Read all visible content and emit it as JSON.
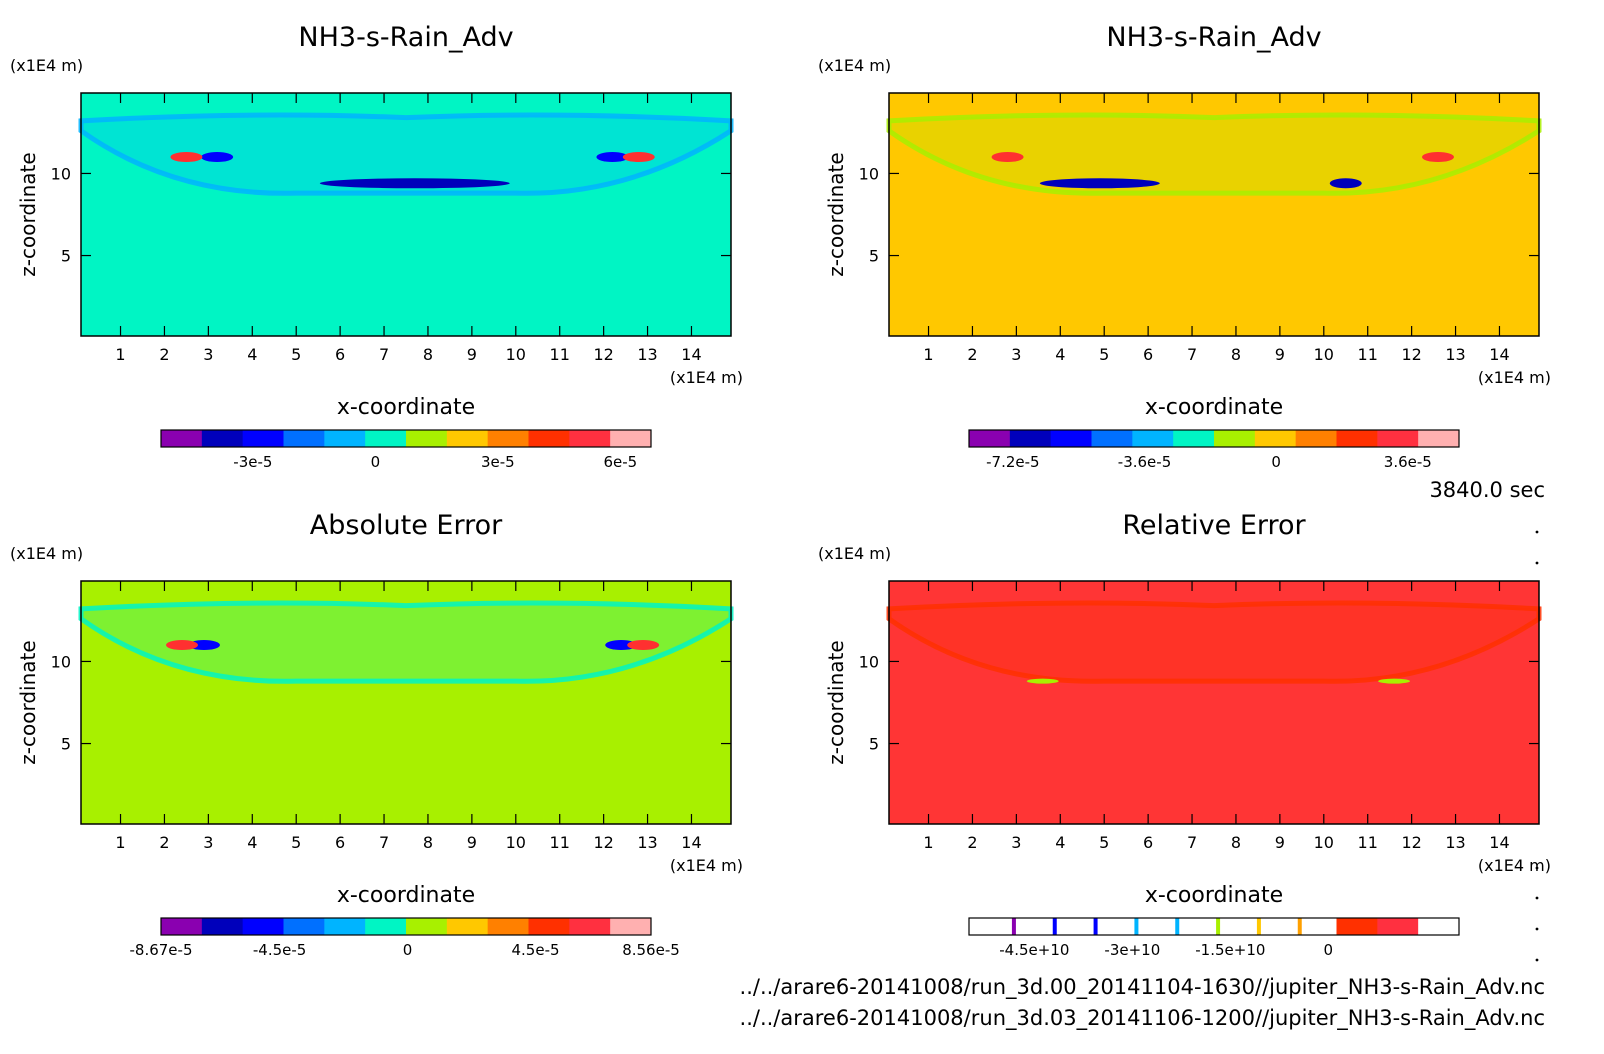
{
  "timestamp": "3840.0 sec",
  "files": [
    "../../arare6-20141008/run_3d.00_20141104-1630//jupiter_NH3-s-Rain_Adv.nc",
    "../../arare6-20141008/run_3d.03_20141106-1200//jupiter_NH3-s-Rain_Adv.nc"
  ],
  "chart_data": [
    {
      "type": "heatmap",
      "title": "NH3-s-Rain_Adv",
      "xlabel": "x-coordinate",
      "ylabel": "z-coordinate",
      "xunit": "(x1E4 m)",
      "yunit": "(x1E4 m)",
      "xticks": [
        1,
        2,
        3,
        4,
        5,
        6,
        7,
        8,
        9,
        10,
        11,
        12,
        13,
        14
      ],
      "yticks": [
        5,
        10
      ],
      "xlim": [
        0.1,
        14.9
      ],
      "ylim": [
        0.1,
        14.9
      ],
      "background_color": "#00f5c4",
      "features": [
        {
          "x": 7.7,
          "z": 9.4,
          "value": -3.8e-05,
          "color": "#0000bb"
        },
        {
          "x": 3.2,
          "z": 11.0,
          "value": -3e-05,
          "color": "#0000ff"
        },
        {
          "x": 12.2,
          "z": 11.0,
          "value": -3e-05,
          "color": "#0000ff"
        },
        {
          "x": 2.5,
          "z": 11.0,
          "value": 6e-05,
          "color": "#ff3030"
        },
        {
          "x": 12.8,
          "z": 11.0,
          "value": 6e-05,
          "color": "#ff3030"
        }
      ],
      "colorbar": {
        "colors": [
          "#8a00b0",
          "#0000bb",
          "#0000ff",
          "#0070ff",
          "#00b4ff",
          "#00f5c4",
          "#a8f000",
          "#ffc800",
          "#ff8000",
          "#ff3000",
          "#ff3040",
          "#ffb0b0"
        ],
        "ticks": [
          "-3e-5",
          "0",
          "3e-5",
          "6e-5"
        ],
        "tick_values": [
          -3e-05,
          0,
          3e-05,
          6e-05
        ],
        "range": [
          -5.25e-05,
          6.75e-05
        ]
      }
    },
    {
      "type": "heatmap",
      "title": "NH3-s-Rain_Adv",
      "xlabel": "x-coordinate",
      "ylabel": "z-coordinate",
      "xunit": "(x1E4 m)",
      "yunit": "(x1E4 m)",
      "xticks": [
        1,
        2,
        3,
        4,
        5,
        6,
        7,
        8,
        9,
        10,
        11,
        12,
        13,
        14
      ],
      "yticks": [
        5,
        10
      ],
      "xlim": [
        0.1,
        14.9
      ],
      "ylim": [
        0.1,
        14.9
      ],
      "background_color": "#ffc800",
      "features": [
        {
          "x": 4.9,
          "z": 9.4,
          "value": -7.2e-05,
          "color": "#0000bb"
        },
        {
          "x": 10.5,
          "z": 9.4,
          "value": -7.2e-05,
          "color": "#0000bb"
        },
        {
          "x": 2.8,
          "z": 11.0,
          "value": 3.6e-05,
          "color": "#ff3030"
        },
        {
          "x": 12.6,
          "z": 11.0,
          "value": 3.6e-05,
          "color": "#ff3030"
        }
      ],
      "colorbar": {
        "colors": [
          "#8a00b0",
          "#0000bb",
          "#0000ff",
          "#0070ff",
          "#00b4ff",
          "#00f5c4",
          "#a8f000",
          "#ffc800",
          "#ff8000",
          "#ff3000",
          "#ff3040",
          "#ffb0b0"
        ],
        "ticks": [
          "-7.2e-5",
          "-3.6e-5",
          "0",
          "3.6e-5"
        ],
        "tick_values": [
          -7.2e-05,
          -3.6e-05,
          0,
          3.6e-05
        ],
        "range": [
          -8.4e-05,
          5e-05
        ]
      }
    },
    {
      "type": "heatmap",
      "title": "Absolute Error",
      "xlabel": "x-coordinate",
      "ylabel": "z-coordinate",
      "xunit": "(x1E4 m)",
      "yunit": "(x1E4 m)",
      "xticks": [
        1,
        2,
        3,
        4,
        5,
        6,
        7,
        8,
        9,
        10,
        11,
        12,
        13,
        14
      ],
      "yticks": [
        5,
        10
      ],
      "xlim": [
        0.1,
        14.9
      ],
      "ylim": [
        0.1,
        14.9
      ],
      "background_color": "#a8f000",
      "features": [
        {
          "x": 2.9,
          "z": 11.0,
          "value": -8.67e-05,
          "color": "#0000ff"
        },
        {
          "x": 12.4,
          "z": 11.0,
          "value": -8.67e-05,
          "color": "#0000ff"
        },
        {
          "x": 2.4,
          "z": 11.0,
          "value": 8.56e-05,
          "color": "#ff3030"
        },
        {
          "x": 12.9,
          "z": 11.0,
          "value": 8.56e-05,
          "color": "#ff3030"
        }
      ],
      "colorbar": {
        "colors": [
          "#8a00b0",
          "#0000bb",
          "#0000ff",
          "#0070ff",
          "#00b4ff",
          "#00f5c4",
          "#a8f000",
          "#ffc800",
          "#ff8000",
          "#ff3000",
          "#ff3040",
          "#ffb0b0"
        ],
        "ticks": [
          "-8.67e-5",
          "-4.5e-5",
          "0",
          "4.5e-5",
          "8.56e-5"
        ],
        "tick_values": [
          -8.67e-05,
          -4.5e-05,
          0,
          4.5e-05,
          8.56e-05
        ],
        "range": [
          -8.67e-05,
          8.56e-05
        ]
      }
    },
    {
      "type": "heatmap",
      "title": "Relative Error",
      "xlabel": "x-coordinate",
      "ylabel": "z-coordinate",
      "xunit": "(x1E4 m)",
      "yunit": "(x1E4 m)",
      "xticks": [
        1,
        2,
        3,
        4,
        5,
        6,
        7,
        8,
        9,
        10,
        11,
        12,
        13,
        14
      ],
      "yticks": [
        5,
        10
      ],
      "xlim": [
        0.1,
        14.9
      ],
      "ylim": [
        0.1,
        14.9
      ],
      "background_color": "#ff3535",
      "features": [
        {
          "x": 3.6,
          "z": 8.8,
          "value": 0,
          "color": "#a8f000"
        },
        {
          "x": 11.6,
          "z": 8.8,
          "value": 0,
          "color": "#a8f000"
        }
      ],
      "colorbar": {
        "colors": [
          "#ffffff",
          "#ffffff",
          "#ffffff",
          "#ffffff",
          "#ffffff",
          "#ffffff",
          "#ffffff",
          "#ffffff",
          "#ffffff",
          "#ff3000",
          "#ff3040",
          "#ffffff"
        ],
        "line_colors": [
          "#8a00b0",
          "#0000ff",
          "#0000ff",
          "#00b4ff",
          "#00b4ff",
          "#a8f000",
          "#ffc800",
          "#ffa000"
        ],
        "ticks": [
          "-4.5e+10",
          "-3e+10",
          "-1.5e+10",
          "0"
        ],
        "tick_values": [
          -45000000000.0,
          -30000000000.0,
          -15000000000.0,
          0
        ],
        "range": [
          -55000000000.0,
          20000000000.0
        ]
      }
    }
  ]
}
